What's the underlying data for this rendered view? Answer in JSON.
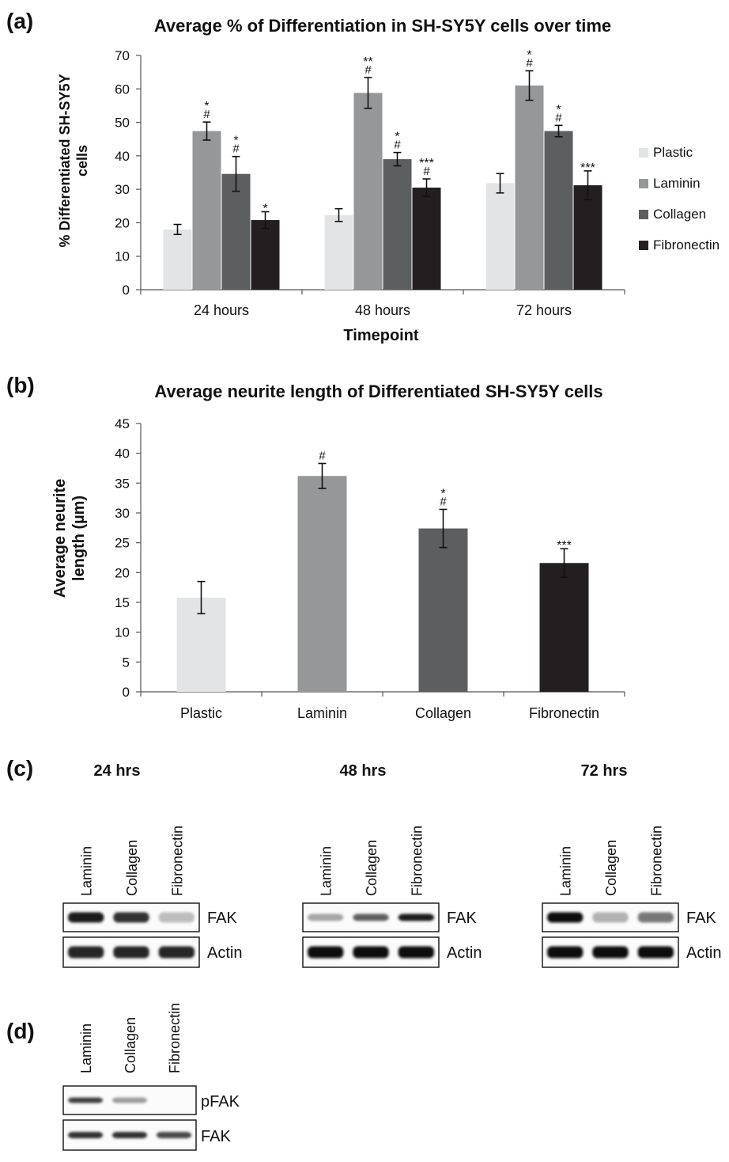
{
  "chart_data": [
    {
      "panel": "(a)",
      "type": "bar",
      "title": "Average % of Differentiation in SH-SY5Y cells over time",
      "xlabel": "Timepoint",
      "ylabel": "% Differentiated SH-SY5Y cells",
      "ylim": [
        0,
        70
      ],
      "yticks": [
        0,
        10,
        20,
        30,
        40,
        50,
        60,
        70
      ],
      "categories": [
        "24 hours",
        "48 hours",
        "72 hours"
      ],
      "legend_position": "right",
      "series": [
        {
          "name": "Plastic",
          "color": "#e3e4e6",
          "values": [
            18,
            22.3,
            31.8
          ],
          "errors": [
            1.5,
            1.9,
            2.9
          ],
          "annotations": [
            "",
            "",
            ""
          ]
        },
        {
          "name": "Laminin",
          "color": "#959799",
          "values": [
            47.4,
            58.8,
            61
          ],
          "errors": [
            2.7,
            4.6,
            4.4
          ],
          "annotations": [
            "*\n#",
            "**\n#",
            "*\n#"
          ]
        },
        {
          "name": "Collagen",
          "color": "#5d5e60",
          "values": [
            34.6,
            39,
            47.4
          ],
          "errors": [
            5.2,
            2,
            1.7
          ],
          "annotations": [
            "*\n#",
            "*\n#",
            "*\n#"
          ]
        },
        {
          "name": "Fibronectin",
          "color": "#231f20",
          "values": [
            20.8,
            30.5,
            31.2
          ],
          "errors": [
            2.5,
            2.6,
            4.3
          ],
          "annotations": [
            "*",
            "***\n#",
            "***"
          ]
        }
      ]
    },
    {
      "panel": "(b)",
      "type": "bar",
      "title": "Average neurite length of Differentiated SH-SY5Y cells",
      "xlabel": "",
      "ylabel": "Average neurite length (µm)",
      "ylim": [
        0,
        45
      ],
      "yticks": [
        0,
        5,
        10,
        15,
        20,
        25,
        30,
        35,
        40,
        45
      ],
      "categories": [
        "Plastic",
        "Laminin",
        "Collagen",
        "Fibronectin"
      ],
      "values": [
        15.8,
        36.2,
        27.4,
        21.6
      ],
      "errors": [
        2.7,
        2.1,
        3.2,
        2.4
      ],
      "colors": [
        "#e3e4e6",
        "#959799",
        "#5d5e60",
        "#231f20"
      ],
      "annotations": [
        "",
        "#",
        "*\n#",
        "***"
      ]
    }
  ],
  "blots": {
    "panel_c_label": "(c)",
    "panel_d_label": "(d)",
    "c_groups": [
      {
        "timepoint": "24 hrs",
        "lanes": [
          "Laminin",
          "Collagen",
          "Fibronectin"
        ],
        "rows": [
          "FAK",
          "Actin"
        ],
        "fak_intensity": [
          0.9,
          0.8,
          0.2
        ],
        "actin_intensity": [
          0.85,
          0.85,
          0.85
        ]
      },
      {
        "timepoint": "48 hrs",
        "lanes": [
          "Laminin",
          "Collagen",
          "Fibronectin"
        ],
        "rows": [
          "FAK",
          "Actin"
        ],
        "fak_intensity": [
          0.3,
          0.6,
          0.9
        ],
        "actin_intensity": [
          0.95,
          0.95,
          0.95
        ]
      },
      {
        "timepoint": "72 hrs",
        "lanes": [
          "Laminin",
          "Collagen",
          "Fibronectin"
        ],
        "rows": [
          "FAK",
          "Actin"
        ],
        "fak_intensity": [
          0.95,
          0.25,
          0.5
        ],
        "actin_intensity": [
          0.95,
          0.95,
          0.95
        ]
      }
    ],
    "d_group": {
      "lanes": [
        "Laminin",
        "Collagen",
        "Fibronectin"
      ],
      "rows": [
        "pFAK",
        "FAK"
      ],
      "pfak_intensity": [
        0.75,
        0.35,
        0.0
      ],
      "fak_intensity": [
        0.8,
        0.8,
        0.7
      ]
    }
  }
}
